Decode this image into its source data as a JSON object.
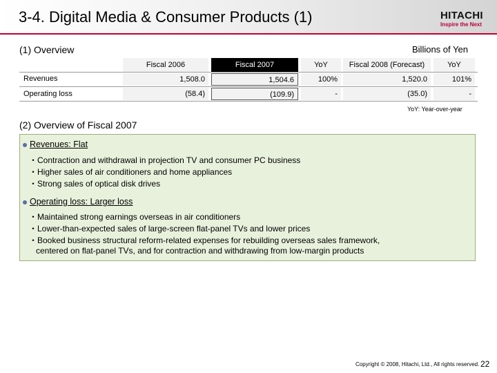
{
  "header": {
    "title": "3-4. Digital Media & Consumer Products (1)",
    "logo_name": "HITACHI",
    "logo_tagline": "Inspire the Next"
  },
  "overview": {
    "heading": "(1) Overview",
    "units": "Billions of Yen",
    "columns": [
      "Fiscal 2006",
      "Fiscal 2007",
      "YoY",
      "Fiscal 2008 (Forecast)",
      "YoY"
    ],
    "rows": [
      {
        "label": "Revenues",
        "values": [
          "1,508.0",
          "1,504.6",
          "100%",
          "1,520.0",
          "101%"
        ]
      },
      {
        "label": "Operating loss",
        "values": [
          "(58.4)",
          "(109.9)",
          "-",
          "(35.0)",
          "-"
        ]
      }
    ],
    "note": "YoY: Year-over-year"
  },
  "fiscal2007": {
    "heading": "(2) Overview of Fiscal 2007",
    "bullets": [
      {
        "title": "Revenues: Flat",
        "lines": [
          "・Contraction and withdrawal in projection TV and consumer PC business",
          "・Higher sales of air conditioners and home appliances",
          "・Strong sales of optical disk drives"
        ]
      },
      {
        "title": "Operating loss: Larger loss",
        "lines": [
          "・Maintained strong earnings overseas in air conditioners",
          "・Lower-than-expected sales of large-screen flat-panel TVs and lower prices",
          "・Booked business structural reform-related expenses for rebuilding overseas sales framework,",
          "centered on flat-panel TVs, and for contraction and withdrawing from low-margin products"
        ]
      }
    ]
  },
  "footer": {
    "copyright": "Copyright © 2008, Hitachi, Ltd., All rights reserved.",
    "page": "22"
  },
  "colors": {
    "accent": "#c0002f",
    "box_fill": "#e8f1dc",
    "box_border": "#9ab07c",
    "bullet": "#5a6fa6"
  }
}
